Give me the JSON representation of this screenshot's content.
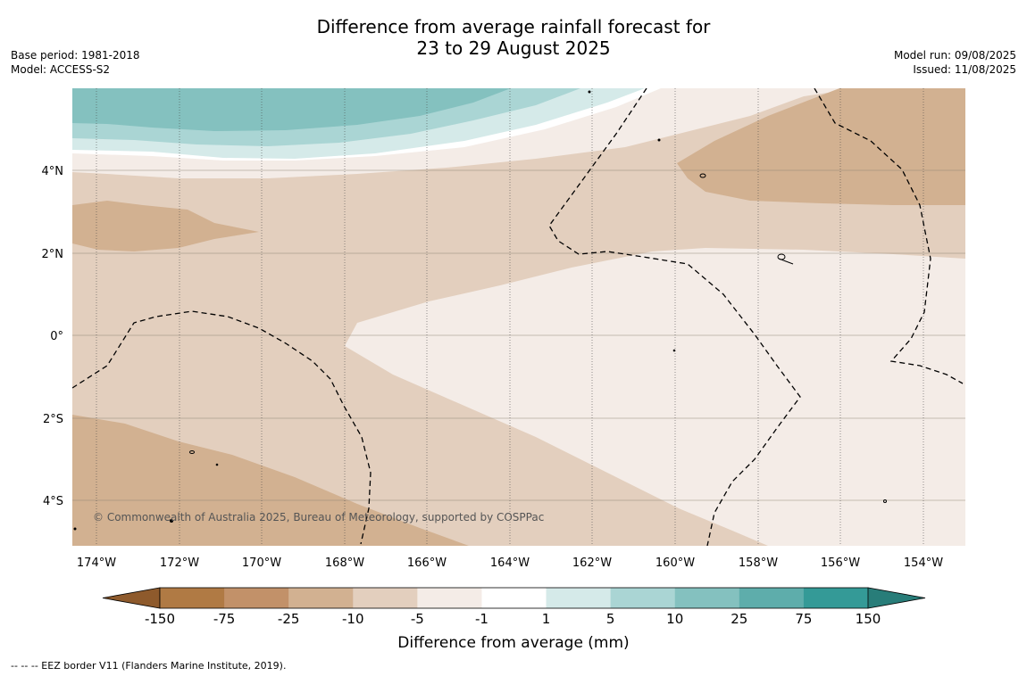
{
  "header": {
    "title_line1": "Difference from average rainfall forecast for",
    "title_line2": "23 to 29 August 2025",
    "base_period": "Base period: 1981-2018",
    "model": "Model: ACCESS-S2",
    "model_run": "Model run: 09/08/2025",
    "issued": "Issued: 11/08/2025"
  },
  "map": {
    "copyright": "© Commonwealth of Australia 2025, Bureau of Meteorology, supported by COSPPac",
    "lon_labels": [
      "174°W",
      "172°W",
      "170°W",
      "168°W",
      "166°W",
      "164°W",
      "162°W",
      "160°W",
      "158°W",
      "156°W",
      "154°W"
    ],
    "lon_values": [
      -174,
      -172,
      -170,
      -168,
      -166,
      -164,
      -162,
      -160,
      -158,
      -156,
      -154
    ],
    "lat_labels": [
      "4°N",
      "2°N",
      "0°",
      "2°S",
      "4°S"
    ],
    "lat_values": [
      4,
      2,
      0,
      -2,
      -4
    ],
    "lon_range": [
      -174.6,
      -153.0
    ],
    "lat_range": [
      -5.2,
      6.0
    ],
    "colors": {
      "brown_m25": "#d2b191",
      "brown_m10": "#e3cfbe",
      "brown_m5": "#f4ece7",
      "white": "#ffffff",
      "teal_5": "#d5eae9",
      "teal_10": "#aad5d4",
      "teal_25": "#84c1bf"
    }
  },
  "colorbar": {
    "tick_labels": [
      "-150",
      "-75",
      "-25",
      "-10",
      "-5",
      "-1",
      "1",
      "5",
      "10",
      "25",
      "75",
      "150"
    ],
    "colors": [
      "#b07a44",
      "#c29169",
      "#d2b191",
      "#e3cfbe",
      "#f4ece7",
      "#ffffff",
      "#d5eae9",
      "#aad5d4",
      "#84c1bf",
      "#5eadab",
      "#349a97"
    ],
    "extend_low_color": "#8e5a2c",
    "extend_high_color": "#287d79",
    "label": "Difference from average (mm)"
  },
  "footer": {
    "legend_text": "--  --  -- EEZ border V11 (Flanders Marine Institute, 2019)."
  }
}
